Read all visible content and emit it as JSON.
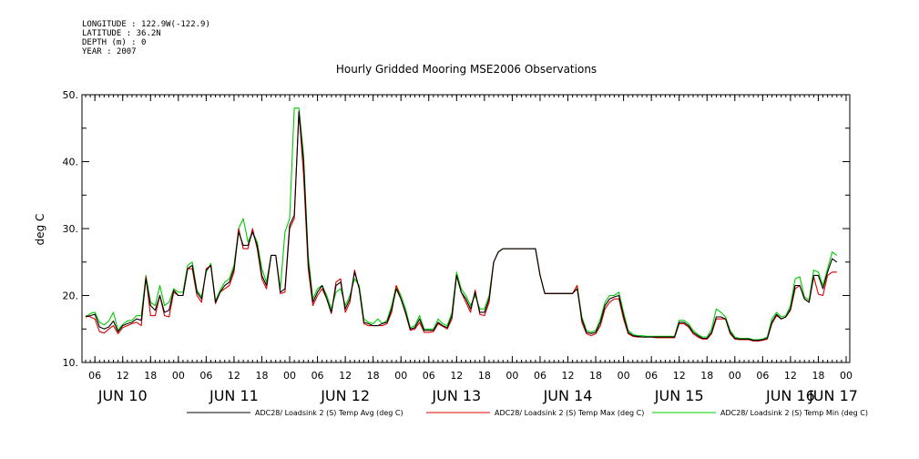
{
  "meta": {
    "longitude": "LONGITUDE : 122.9W(-122.9)",
    "latitude": "LATITUDE : 36.2N",
    "depth": "DEPTH (m) : 0",
    "year": "YEAR : 2007"
  },
  "chart_data": {
    "type": "line",
    "title": "Hourly Gridded Mooring MSE2006 Observations",
    "ylabel": "deg C",
    "xlabel": "",
    "ylim": [
      10,
      50
    ],
    "yticks": [
      10,
      20,
      30,
      40,
      50
    ],
    "ytick_labels": [
      "10.",
      "20.",
      "30.",
      "40.",
      "50."
    ],
    "xlim_hours": [
      0,
      164
    ],
    "hour_ticks": [
      {
        "h": 2,
        "label": "06"
      },
      {
        "h": 8,
        "label": "12"
      },
      {
        "h": 14,
        "label": "18"
      },
      {
        "h": 20,
        "label": "00"
      },
      {
        "h": 26,
        "label": "06"
      },
      {
        "h": 32,
        "label": "12"
      },
      {
        "h": 38,
        "label": "18"
      },
      {
        "h": 44,
        "label": "00"
      },
      {
        "h": 50,
        "label": "06"
      },
      {
        "h": 56,
        "label": "12"
      },
      {
        "h": 62,
        "label": "18"
      },
      {
        "h": 68,
        "label": "00"
      },
      {
        "h": 74,
        "label": "06"
      },
      {
        "h": 80,
        "label": "12"
      },
      {
        "h": 86,
        "label": "18"
      },
      {
        "h": 92,
        "label": "00"
      },
      {
        "h": 98,
        "label": "06"
      },
      {
        "h": 104,
        "label": "12"
      },
      {
        "h": 110,
        "label": "18"
      },
      {
        "h": 116,
        "label": "00"
      },
      {
        "h": 122,
        "label": "06"
      },
      {
        "h": 128,
        "label": "12"
      },
      {
        "h": 134,
        "label": "18"
      },
      {
        "h": 140,
        "label": "00"
      },
      {
        "h": 146,
        "label": "06"
      },
      {
        "h": 152,
        "label": "12"
      },
      {
        "h": 158,
        "label": "18"
      },
      {
        "h": 164,
        "label": "00"
      }
    ],
    "day_labels": [
      {
        "h": 8,
        "label": "JUN 10"
      },
      {
        "h": 32,
        "label": "JUN 11"
      },
      {
        "h": 56,
        "label": "JUN 12"
      },
      {
        "h": 80,
        "label": "JUN 13"
      },
      {
        "h": 104,
        "label": "JUN 14"
      },
      {
        "h": 128,
        "label": "JUN 15"
      },
      {
        "h": 152,
        "label": "JUN 16"
      },
      {
        "h": 168,
        "label": "JUN 17"
      }
    ],
    "x_hours": [
      0,
      1,
      2,
      3,
      4,
      5,
      6,
      7,
      8,
      9,
      10,
      11,
      12,
      13,
      14,
      15,
      16,
      17,
      18,
      19,
      20,
      21,
      22,
      23,
      24,
      25,
      26,
      27,
      28,
      29,
      30,
      31,
      32,
      33,
      34,
      35,
      36,
      37,
      38,
      39,
      40,
      41,
      42,
      43,
      44,
      45,
      46,
      47,
      48,
      49,
      50,
      51,
      52,
      53,
      54,
      55,
      56,
      57,
      58,
      59,
      60,
      61,
      62,
      63,
      64,
      65,
      66,
      67,
      68,
      69,
      70,
      71,
      72,
      73,
      74,
      75,
      76,
      77,
      78,
      79,
      80,
      81,
      82,
      83,
      84,
      85,
      86,
      87,
      88,
      89,
      90,
      91,
      92,
      93,
      94,
      95,
      96,
      97,
      98,
      99,
      100,
      101,
      102,
      103,
      104,
      105,
      106,
      107,
      108,
      109,
      110,
      111,
      112,
      113,
      114,
      115,
      116,
      117,
      118,
      119,
      120,
      121,
      122,
      123,
      124,
      125,
      126,
      127,
      128,
      129,
      130,
      131,
      132,
      133,
      134,
      135,
      136,
      137,
      138,
      139,
      140,
      141,
      142,
      143,
      144,
      145,
      146,
      147,
      148,
      149,
      150,
      151,
      152,
      153,
      154,
      155,
      156,
      157,
      158,
      159,
      160,
      161,
      162,
      163,
      164
    ],
    "series": [
      {
        "name": "ADC28/ Loadsink 2 (S) Temp Avg (deg C)",
        "color": "#000000",
        "values": [
          16.8,
          17.0,
          17.2,
          15.3,
          15.0,
          15.3,
          16.2,
          14.6,
          15.5,
          15.8,
          16.0,
          16.5,
          16.3,
          22.5,
          18.5,
          17.8,
          20.0,
          17.5,
          17.8,
          20.8,
          20.0,
          20.0,
          24.0,
          24.5,
          20.5,
          19.5,
          23.8,
          24.5,
          19.0,
          20.5,
          21.5,
          22.0,
          24.0,
          29.5,
          27.5,
          27.5,
          29.5,
          27.5,
          23.0,
          21.5,
          26.0,
          26.0,
          20.5,
          21.0,
          30.5,
          32.0,
          47.5,
          40.0,
          25.0,
          19.0,
          20.5,
          21.5,
          19.5,
          17.5,
          21.5,
          22.0,
          18.0,
          19.5,
          23.5,
          21.0,
          16.0,
          15.8,
          15.5,
          15.5,
          15.8,
          16.0,
          18.0,
          21.0,
          19.5,
          17.5,
          15.0,
          15.2,
          16.5,
          14.8,
          14.8,
          14.8,
          16.0,
          15.5,
          15.2,
          17.0,
          23.0,
          20.5,
          19.5,
          18.0,
          20.5,
          17.5,
          17.5,
          19.5,
          25.0,
          26.5,
          27.0,
          27.0,
          27.0,
          27.0,
          27.0,
          27.0,
          27.0,
          27.0,
          23.0,
          20.3,
          20.3,
          20.3,
          20.3,
          20.3,
          20.3,
          20.3,
          21.0,
          16.5,
          14.5,
          14.3,
          14.5,
          16.0,
          18.5,
          19.5,
          19.8,
          20.0,
          17.0,
          14.5,
          14.0,
          13.9,
          13.8,
          13.8,
          13.8,
          13.8,
          13.8,
          13.8,
          13.8,
          13.8,
          16.0,
          16.0,
          15.5,
          14.5,
          14.0,
          13.6,
          13.6,
          14.5,
          16.8,
          16.8,
          16.5,
          14.5,
          13.6,
          13.5,
          13.5,
          13.5,
          13.3,
          13.3,
          13.4,
          13.6,
          16.0,
          17.2,
          16.5,
          16.8,
          18.0,
          21.5,
          21.5,
          19.5,
          19.0,
          23.0,
          23.0,
          21.0,
          23.5,
          25.5,
          25.0
        ]
      },
      {
        "name": "ADC28/ Loadsink 2 (S) Temp Max (deg C)",
        "color": "#dd0000",
        "values": [
          17.0,
          16.8,
          16.5,
          14.6,
          14.4,
          15.0,
          15.5,
          14.3,
          15.2,
          15.5,
          15.8,
          16.0,
          15.5,
          22.8,
          17.0,
          17.0,
          20.0,
          17.0,
          16.8,
          20.5,
          20.0,
          20.0,
          24.0,
          24.0,
          20.0,
          19.0,
          24.0,
          24.5,
          18.8,
          20.5,
          21.0,
          21.5,
          23.5,
          30.0,
          27.0,
          27.0,
          30.0,
          27.0,
          22.5,
          21.0,
          26.0,
          26.0,
          20.3,
          20.5,
          30.0,
          31.5,
          47.5,
          38.0,
          24.0,
          18.5,
          20.0,
          21.0,
          19.5,
          17.3,
          22.0,
          22.5,
          17.5,
          19.0,
          23.8,
          21.0,
          15.8,
          15.5,
          15.5,
          15.5,
          15.5,
          15.8,
          17.5,
          21.5,
          19.5,
          17.3,
          14.8,
          15.0,
          16.0,
          14.5,
          14.5,
          14.6,
          15.8,
          15.4,
          15.0,
          16.5,
          23.0,
          20.5,
          19.0,
          17.5,
          20.8,
          17.2,
          17.0,
          19.0,
          25.0,
          26.5,
          27.0,
          27.0,
          27.0,
          27.0,
          27.0,
          27.0,
          27.0,
          27.0,
          23.0,
          20.3,
          20.3,
          20.3,
          20.3,
          20.3,
          20.3,
          20.3,
          21.5,
          16.0,
          14.3,
          14.0,
          14.3,
          15.5,
          18.0,
          19.0,
          19.5,
          19.5,
          16.5,
          14.3,
          13.9,
          13.8,
          13.8,
          13.8,
          13.8,
          13.7,
          13.7,
          13.7,
          13.7,
          13.7,
          15.8,
          15.8,
          15.3,
          14.3,
          13.8,
          13.5,
          13.5,
          14.3,
          16.5,
          16.5,
          16.5,
          14.3,
          13.5,
          13.4,
          13.4,
          13.4,
          13.2,
          13.2,
          13.3,
          13.5,
          15.8,
          17.0,
          16.5,
          16.8,
          17.8,
          21.0,
          21.5,
          19.5,
          19.0,
          22.8,
          20.2,
          20.0,
          23.0,
          23.5,
          23.5
        ]
      },
      {
        "name": "ADC28/ Loadsink 2 (S) Temp Min (deg C)",
        "color": "#00cc00",
        "values": [
          16.8,
          17.3,
          17.5,
          16.0,
          15.6,
          16.2,
          17.5,
          14.8,
          15.7,
          16.2,
          16.3,
          17.0,
          17.0,
          23.0,
          19.0,
          18.5,
          21.5,
          18.5,
          19.0,
          21.0,
          20.5,
          20.5,
          24.5,
          25.0,
          20.8,
          19.8,
          23.5,
          24.8,
          19.2,
          20.8,
          22.0,
          22.5,
          24.5,
          30.0,
          31.5,
          28.0,
          29.5,
          28.0,
          24.0,
          22.0,
          26.0,
          26.0,
          21.0,
          29.5,
          31.5,
          48.0,
          48.0,
          41.0,
          26.0,
          19.5,
          21.0,
          21.5,
          20.0,
          18.0,
          20.5,
          21.0,
          18.5,
          20.0,
          22.5,
          21.5,
          16.5,
          16.0,
          15.8,
          16.5,
          15.8,
          16.3,
          18.5,
          21.5,
          20.0,
          18.0,
          15.2,
          15.5,
          17.0,
          15.0,
          15.0,
          15.0,
          16.5,
          15.8,
          15.5,
          17.5,
          23.5,
          21.0,
          20.0,
          18.5,
          20.0,
          18.0,
          18.0,
          20.0,
          25.0,
          26.5,
          27.0,
          27.0,
          27.0,
          27.0,
          27.0,
          27.0,
          27.0,
          27.0,
          23.0,
          20.3,
          20.3,
          20.3,
          20.3,
          20.3,
          20.3,
          20.3,
          21.5,
          16.8,
          14.8,
          14.5,
          14.8,
          16.5,
          19.0,
          20.0,
          20.0,
          20.5,
          17.5,
          14.8,
          14.2,
          14.0,
          14.0,
          13.9,
          13.9,
          13.9,
          13.9,
          13.9,
          13.9,
          13.9,
          16.3,
          16.3,
          15.8,
          14.8,
          14.2,
          13.8,
          13.8,
          15.0,
          18.0,
          17.5,
          16.8,
          14.8,
          13.8,
          13.6,
          13.6,
          13.6,
          13.4,
          13.4,
          13.5,
          13.8,
          16.5,
          17.5,
          16.8,
          17.0,
          18.5,
          22.5,
          22.8,
          19.8,
          19.3,
          23.8,
          23.5,
          21.5,
          24.0,
          26.5,
          26.0
        ]
      }
    ],
    "grid": false,
    "legend_position": "bottom"
  }
}
